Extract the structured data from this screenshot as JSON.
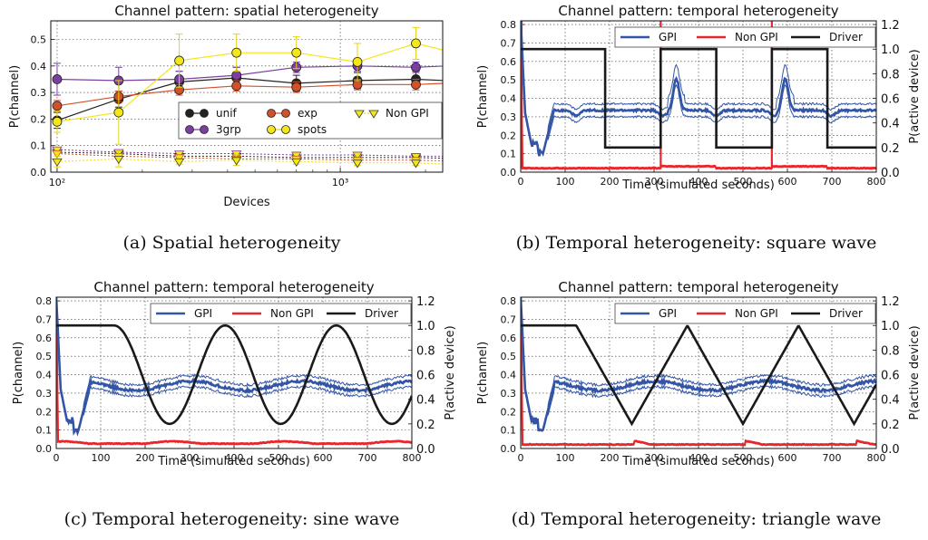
{
  "captions": {
    "a": "(a)  Spatial heterogeneity",
    "b": "(b)  Temporal heterogeneity: square wave",
    "c": "(c)  Temporal heterogeneity: sine wave",
    "d": "(d)  Temporal heterogeneity: triangle wave"
  },
  "colors": {
    "gpi": "#3355a6",
    "nongpi": "#e8262b",
    "driver": "#1a1a1a",
    "unif": "#222222",
    "3grp": "#7a3fa0",
    "exp": "#d1512a",
    "spots": "#f3e619"
  },
  "chart_data": [
    {
      "id": "a",
      "type": "line",
      "title": "Channel pattern: spatial heterogeneity",
      "xlabel": "Devices",
      "ylabel": "P(channel)",
      "xscale": "log",
      "xlim": [
        95,
        2300
      ],
      "ylim": [
        0,
        0.57
      ],
      "yticks": [
        "0.0",
        "0.1",
        "0.2",
        "0.3",
        "0.4",
        "0.5"
      ],
      "xtick_labels": [
        "10²",
        "10³"
      ],
      "grid": true,
      "legend": "lower-right",
      "legend_labels": [
        "unif",
        "3grp",
        "exp",
        "spots",
        "Non GPI"
      ],
      "x": [
        100,
        165,
        270,
        430,
        700,
        1150,
        1850,
        3000
      ],
      "series": [
        {
          "name": "unif",
          "color": "#222222",
          "values": [
            0.195,
            0.275,
            0.34,
            0.355,
            0.335,
            0.345,
            0.35,
            0.34
          ],
          "err": [
            0.03,
            0.03,
            0.04,
            0.04,
            0.03,
            0.03,
            0.03,
            0.02
          ]
        },
        {
          "name": "3grp",
          "color": "#7a3fa0",
          "values": [
            0.35,
            0.345,
            0.35,
            0.365,
            0.395,
            0.4,
            0.395,
            0.405
          ],
          "err": [
            0.06,
            0.05,
            0.03,
            0.03,
            0.02,
            0.02,
            0.02,
            0.01
          ]
        },
        {
          "name": "exp",
          "color": "#d1512a",
          "values": [
            0.25,
            0.285,
            0.31,
            0.325,
            0.32,
            0.33,
            0.33,
            0.34
          ],
          "err": [
            0.02,
            0.02,
            0.02,
            0.02,
            0.02,
            0.02,
            0.02,
            0.01
          ]
        },
        {
          "name": "spots",
          "color": "#f3e619",
          "values": [
            0.19,
            0.225,
            0.42,
            0.45,
            0.45,
            0.415,
            0.485,
            0.43
          ],
          "err": [
            0.04,
            0.12,
            0.1,
            0.07,
            0.06,
            0.07,
            0.06,
            0.08
          ]
        },
        {
          "name": "Non GPI",
          "color": "#f3e619",
          "marker": "triangle",
          "values": [
            0.04,
            0.05,
            0.04,
            0.045,
            0.04,
            0.035,
            0.035,
            0.025
          ],
          "err": [
            0.02,
            0.03,
            0.01,
            0.02,
            0.01,
            0.01,
            0.01,
            0.01
          ]
        }
      ],
      "nongpi_dotted": [
        {
          "color": "#222222",
          "values": [
            0.075,
            0.07,
            0.06,
            0.06,
            0.055,
            0.055,
            0.055,
            0.05
          ]
        },
        {
          "color": "#7a3fa0",
          "values": [
            0.085,
            0.075,
            0.07,
            0.07,
            0.065,
            0.065,
            0.06,
            0.06
          ]
        },
        {
          "color": "#d1512a",
          "values": [
            0.07,
            0.06,
            0.055,
            0.05,
            0.05,
            0.045,
            0.045,
            0.04
          ]
        }
      ]
    },
    {
      "id": "b",
      "type": "line",
      "title": "Channel pattern: temporal heterogeneity",
      "xlabel": "Time (simulated seconds)",
      "ylabel": "P(channel)",
      "ylabel_right": "P(active device)",
      "xlim": [
        0,
        800
      ],
      "ylim": [
        0,
        0.82
      ],
      "ylim_right": [
        0,
        1.23
      ],
      "xticks": [
        0,
        100,
        200,
        300,
        400,
        500,
        600,
        700,
        800
      ],
      "yticks": [
        "0.0",
        "0.1",
        "0.2",
        "0.3",
        "0.4",
        "0.5",
        "0.6",
        "0.7",
        "0.8"
      ],
      "yticks_right": [
        "0.0",
        "0.2",
        "0.4",
        "0.6",
        "0.8",
        "1.0",
        "1.2"
      ],
      "grid": true,
      "legend": "top",
      "legend_labels": [
        "GPI",
        "Non GPI",
        "Driver"
      ],
      "driver": "square"
    },
    {
      "id": "c",
      "type": "line",
      "title": "Channel pattern: temporal heterogeneity",
      "xlabel": "Time (simulated seconds)",
      "ylabel": "P(channel)",
      "ylabel_right": "P(active device)",
      "xlim": [
        0,
        800
      ],
      "ylim": [
        0,
        0.82
      ],
      "ylim_right": [
        0,
        1.23
      ],
      "xticks": [
        0,
        100,
        200,
        300,
        400,
        500,
        600,
        700,
        800
      ],
      "yticks": [
        "0.0",
        "0.1",
        "0.2",
        "0.3",
        "0.4",
        "0.5",
        "0.6",
        "0.7",
        "0.8"
      ],
      "yticks_right": [
        "0.0",
        "0.2",
        "0.4",
        "0.6",
        "0.8",
        "1.0",
        "1.2"
      ],
      "grid": true,
      "legend": "top",
      "legend_labels": [
        "GPI",
        "Non GPI",
        "Driver"
      ],
      "driver": "sine"
    },
    {
      "id": "d",
      "type": "line",
      "title": "Channel pattern: temporal heterogeneity",
      "xlabel": "Time (simulated seconds)",
      "ylabel": "P(channel)",
      "ylabel_right": "P(active device)",
      "xlim": [
        0,
        800
      ],
      "ylim": [
        0,
        0.82
      ],
      "ylim_right": [
        0,
        1.23
      ],
      "xticks": [
        0,
        100,
        200,
        300,
        400,
        500,
        600,
        700,
        800
      ],
      "yticks": [
        "0.0",
        "0.1",
        "0.2",
        "0.3",
        "0.4",
        "0.5",
        "0.6",
        "0.7",
        "0.8"
      ],
      "yticks_right": [
        "0.0",
        "0.2",
        "0.4",
        "0.6",
        "0.8",
        "1.0",
        "1.2"
      ],
      "grid": true,
      "legend": "top",
      "legend_labels": [
        "GPI",
        "Non GPI",
        "Driver"
      ],
      "driver": "triangle"
    }
  ]
}
